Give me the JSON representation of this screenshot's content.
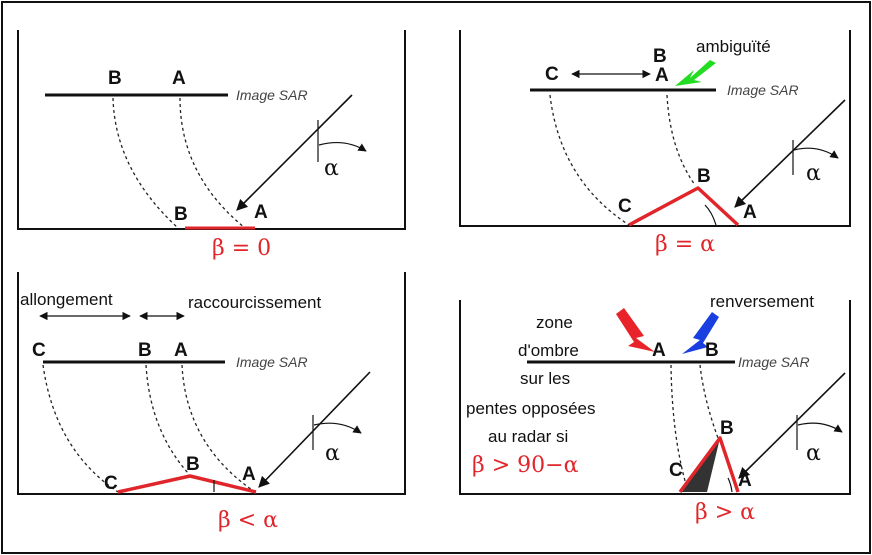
{
  "panels": [
    {
      "points_top": [
        "B",
        "A"
      ],
      "sar_label": "Image SAR",
      "points_bottom": [
        "B",
        "A"
      ],
      "alpha": "α",
      "beta_label": "β = 0"
    },
    {
      "points_top": [
        "C",
        "B",
        "A"
      ],
      "sar_label": "Image SAR",
      "points_bottom": [
        "C",
        "B",
        "A"
      ],
      "alpha": "α",
      "beta_label": "β = α",
      "annotation": "ambiguïté"
    },
    {
      "header_left": "allongement",
      "header_right": "raccourcissement",
      "points_top": [
        "C",
        "B",
        "A"
      ],
      "sar_label": "Image SAR",
      "points_bottom": [
        "C",
        "B",
        "A"
      ],
      "alpha": "α",
      "beta_label": "β < α"
    },
    {
      "header_right": "renversement",
      "shadow_text": [
        "zone",
        "d'ombre",
        "sur les",
        "pentes opposées",
        "au radar si"
      ],
      "shadow_condition": "β > 90−α",
      "points_top": [
        "A",
        "B"
      ],
      "sar_label": "Image SAR",
      "points_bottom": [
        "C",
        "B",
        "A"
      ],
      "alpha": "α",
      "beta_label": "β > α"
    }
  ],
  "colors": {
    "red": "#e0262a",
    "green_arrow": "#22dd22",
    "red_arrow": "#e8242a",
    "blue_arrow": "#1a3fe0",
    "shadow": "#333333"
  }
}
